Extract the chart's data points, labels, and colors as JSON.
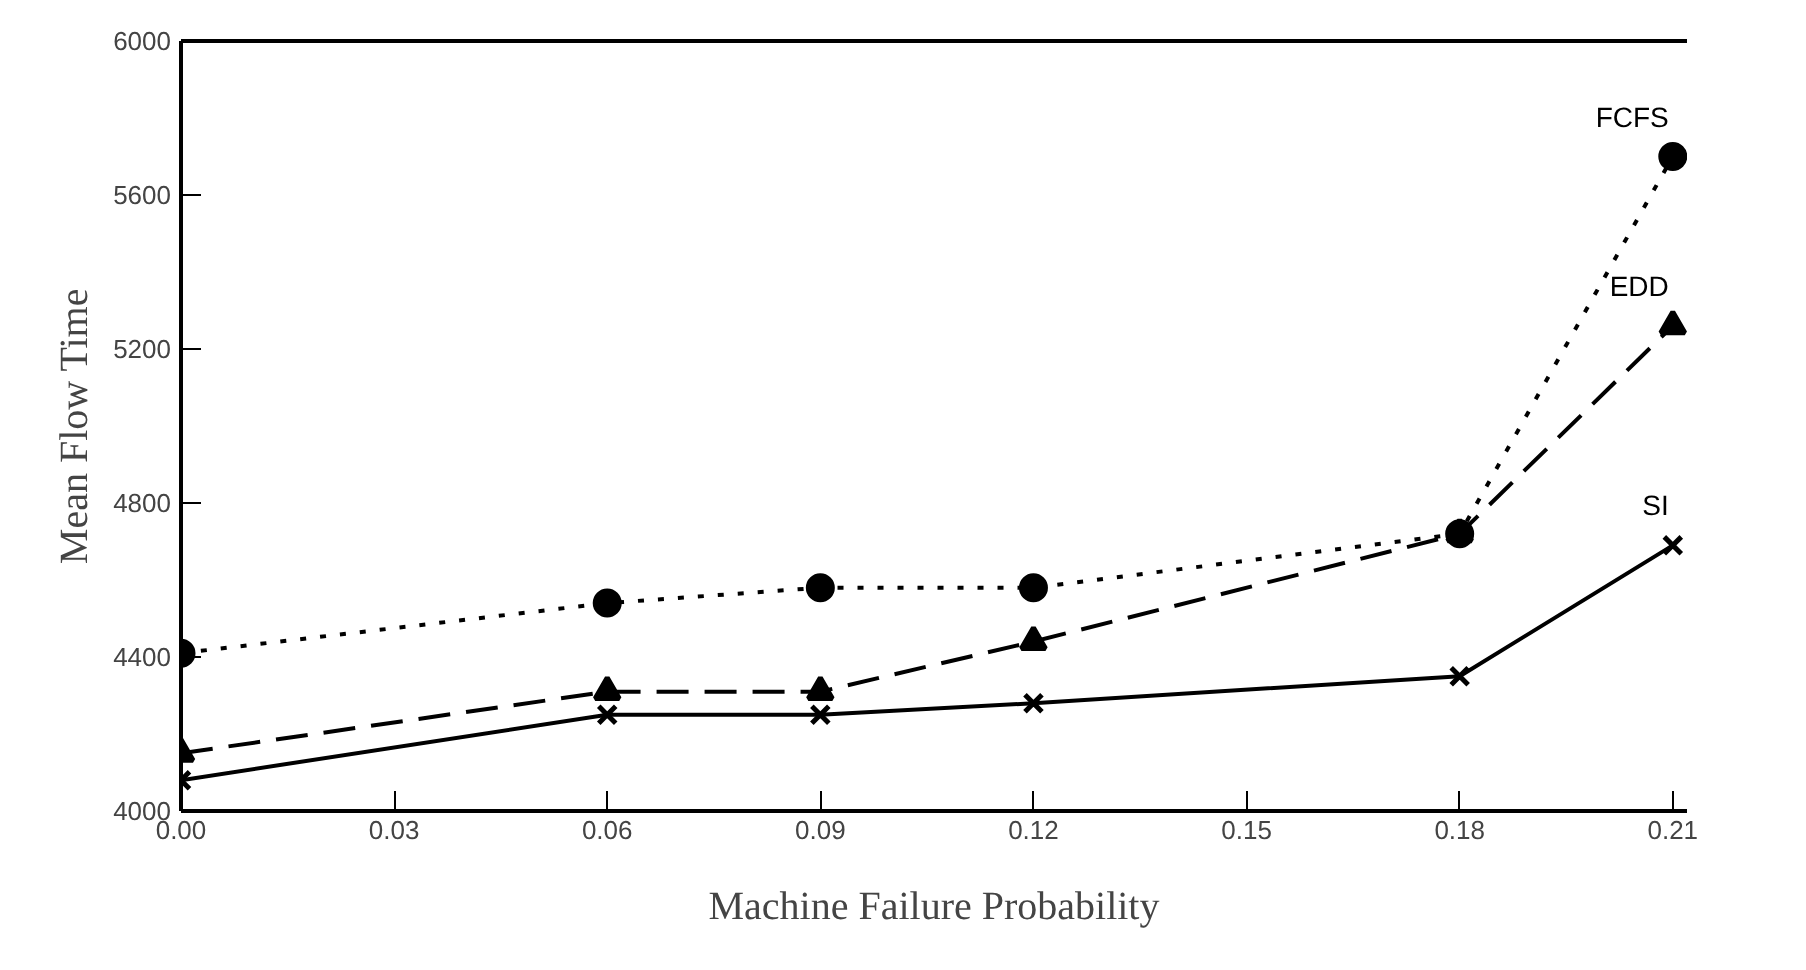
{
  "chart_data": {
    "type": "line",
    "xlabel": "Machine Failure Probability",
    "ylabel": "Mean Flow Time",
    "x": [
      0.0,
      0.06,
      0.09,
      0.12,
      0.18,
      0.21
    ],
    "xlim": [
      0,
      0.212
    ],
    "ylim": [
      4000,
      6000
    ],
    "xticks": [
      {
        "value": 0,
        "label": "0.00"
      },
      {
        "value": 0.03,
        "label": "0.03"
      },
      {
        "value": 0.06,
        "label": "0.06"
      },
      {
        "value": 0.09,
        "label": "0.09"
      },
      {
        "value": 0.12,
        "label": "0.12"
      },
      {
        "value": 0.15,
        "label": "0.15"
      },
      {
        "value": 0.18,
        "label": "0.18"
      },
      {
        "value": 0.21,
        "label": "0.21"
      }
    ],
    "yticks": [
      4000,
      4400,
      4800,
      5200,
      5600,
      6000
    ],
    "grid": false,
    "series": [
      {
        "name": "FCFS",
        "color": "#000000",
        "marker": "circle",
        "line_style": "dotted",
        "values": [
          4410,
          4540,
          4580,
          4580,
          4720,
          5700
        ]
      },
      {
        "name": "EDD",
        "color": "#000000",
        "marker": "triangle",
        "line_style": "dashed",
        "values": [
          4150,
          4310,
          4310,
          4440,
          4720,
          5260
        ]
      },
      {
        "name": "SI",
        "color": "#000000",
        "marker": "cross",
        "line_style": "solid",
        "values": [
          4080,
          4250,
          4250,
          4280,
          4350,
          4690
        ]
      }
    ]
  }
}
